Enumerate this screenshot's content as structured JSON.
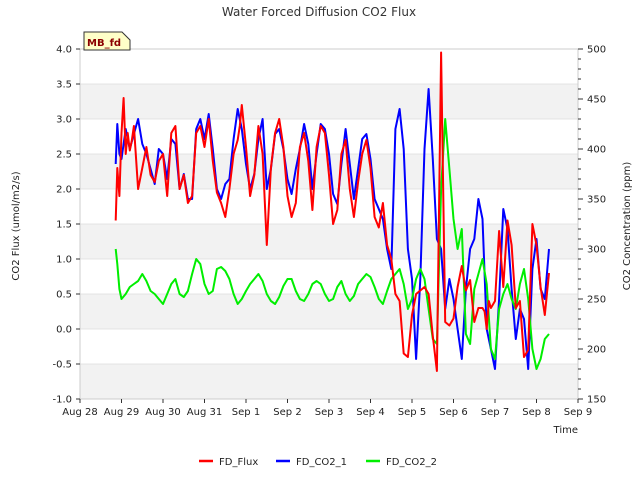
{
  "chart_data": {
    "type": "line",
    "title": "Water Forced Diffusion CO2 Flux",
    "site_label": "MB_fd",
    "xlabel": "Time",
    "ylabel": "CO2 Flux (umol/m2/s)",
    "y2label": "CO2 Concentration (ppm)",
    "x_ticks": [
      "Aug 28",
      "Aug 29",
      "Aug 30",
      "Aug 31",
      "Sep 1",
      "Sep 2",
      "Sep 3",
      "Sep 4",
      "Sep 5",
      "Sep 6",
      "Sep 7",
      "Sep 8",
      "Sep 9"
    ],
    "xlim": [
      0,
      12
    ],
    "ylim": [
      -1.0,
      4.0
    ],
    "y_ticks": [
      "-1.0",
      "-0.5",
      "0.0",
      "0.5",
      "1.0",
      "1.5",
      "2.0",
      "2.5",
      "3.0",
      "3.5",
      "4.0"
    ],
    "y2lim": [
      150,
      500
    ],
    "y2_ticks": [
      "150",
      "200",
      "250",
      "300",
      "350",
      "400",
      "450",
      "500"
    ],
    "series": [
      {
        "name": "FD_Flux",
        "axis": "left",
        "color": "#ff0000",
        "x": [
          0.86,
          0.9,
          0.95,
          1.0,
          1.05,
          1.1,
          1.15,
          1.2,
          1.25,
          1.3,
          1.4,
          1.5,
          1.6,
          1.7,
          1.8,
          1.9,
          2.0,
          2.1,
          2.2,
          2.3,
          2.4,
          2.5,
          2.6,
          2.7,
          2.8,
          2.9,
          3.0,
          3.1,
          3.2,
          3.3,
          3.4,
          3.5,
          3.6,
          3.7,
          3.8,
          3.85,
          3.9,
          4.0,
          4.1,
          4.2,
          4.3,
          4.4,
          4.5,
          4.6,
          4.7,
          4.8,
          4.9,
          5.0,
          5.1,
          5.2,
          5.3,
          5.4,
          5.5,
          5.6,
          5.7,
          5.8,
          5.9,
          6.0,
          6.1,
          6.2,
          6.3,
          6.4,
          6.5,
          6.6,
          6.7,
          6.8,
          6.9,
          7.0,
          7.1,
          7.2,
          7.3,
          7.4,
          7.5,
          7.6,
          7.7,
          7.8,
          7.9,
          8.0,
          8.1,
          8.2,
          8.3,
          8.4,
          8.5,
          8.6,
          8.7,
          8.8,
          8.9,
          9.0,
          9.1,
          9.2,
          9.3,
          9.4,
          9.5,
          9.6,
          9.7,
          9.75,
          9.8,
          9.85,
          9.9,
          10.0,
          10.1,
          10.2,
          10.3,
          10.4,
          10.5,
          10.6,
          10.7,
          10.8,
          10.9,
          11.0,
          11.1,
          11.2,
          11.3
        ],
        "values": [
          1.55,
          2.3,
          1.9,
          2.8,
          3.3,
          2.5,
          2.8,
          2.55,
          2.7,
          2.9,
          2.0,
          2.3,
          2.6,
          2.2,
          2.1,
          2.4,
          2.5,
          1.9,
          2.8,
          2.9,
          2.0,
          2.2,
          1.8,
          1.9,
          2.8,
          2.9,
          2.6,
          3.0,
          2.4,
          1.95,
          1.8,
          1.6,
          2.0,
          2.5,
          2.7,
          2.9,
          3.2,
          2.6,
          1.9,
          2.2,
          2.9,
          2.5,
          1.2,
          2.3,
          2.8,
          3.0,
          2.6,
          1.9,
          1.6,
          1.8,
          2.6,
          2.8,
          2.4,
          1.7,
          2.6,
          2.9,
          2.8,
          2.2,
          1.5,
          1.7,
          2.5,
          2.7,
          2.0,
          1.6,
          2.1,
          2.5,
          2.7,
          2.3,
          1.6,
          1.45,
          1.8,
          1.2,
          1.0,
          0.5,
          0.4,
          -0.35,
          -0.4,
          0.2,
          0.5,
          0.55,
          0.6,
          0.5,
          -0.1,
          -0.6,
          3.95,
          0.1,
          0.05,
          0.15,
          0.6,
          0.9,
          0.55,
          0.7,
          0.1,
          0.3,
          0.3,
          0.25,
          0.0,
          0.4,
          0.3,
          0.4,
          1.4,
          0.6,
          1.55,
          1.2,
          0.3,
          0.4,
          -0.4,
          -0.3,
          1.5,
          1.2,
          0.6,
          0.2,
          0.8
        ]
      },
      {
        "name": "FD_CO2_1",
        "axis": "right",
        "color": "#0000ff",
        "x": [
          0.86,
          0.9,
          0.95,
          1.0,
          1.1,
          1.2,
          1.3,
          1.4,
          1.5,
          1.6,
          1.7,
          1.8,
          1.9,
          2.0,
          2.1,
          2.2,
          2.3,
          2.4,
          2.5,
          2.6,
          2.7,
          2.8,
          2.9,
          3.0,
          3.1,
          3.2,
          3.3,
          3.4,
          3.5,
          3.6,
          3.7,
          3.8,
          3.9,
          4.0,
          4.1,
          4.2,
          4.3,
          4.4,
          4.5,
          4.6,
          4.7,
          4.8,
          4.9,
          5.0,
          5.1,
          5.2,
          5.3,
          5.4,
          5.5,
          5.6,
          5.7,
          5.8,
          5.9,
          6.0,
          6.1,
          6.2,
          6.3,
          6.4,
          6.5,
          6.6,
          6.7,
          6.8,
          6.9,
          7.0,
          7.1,
          7.2,
          7.3,
          7.4,
          7.5,
          7.6,
          7.7,
          7.8,
          7.9,
          8.0,
          8.1,
          8.2,
          8.3,
          8.4,
          8.5,
          8.6,
          8.7,
          8.8,
          8.9,
          9.0,
          9.1,
          9.2,
          9.3,
          9.4,
          9.5,
          9.6,
          9.7,
          9.8,
          9.9,
          10.0,
          10.1,
          10.2,
          10.3,
          10.4,
          10.5,
          10.6,
          10.7,
          10.8,
          10.9,
          11.0,
          11.1,
          11.2,
          11.3
        ],
        "values": [
          385,
          425,
          395,
          390,
          420,
          400,
          415,
          430,
          405,
          395,
          380,
          365,
          400,
          395,
          370,
          410,
          405,
          360,
          375,
          350,
          350,
          420,
          430,
          410,
          435,
          400,
          360,
          350,
          365,
          370,
          410,
          440,
          420,
          385,
          360,
          375,
          410,
          430,
          360,
          380,
          415,
          420,
          400,
          370,
          355,
          380,
          400,
          425,
          405,
          360,
          395,
          425,
          420,
          395,
          355,
          345,
          385,
          420,
          385,
          350,
          380,
          410,
          415,
          390,
          350,
          340,
          330,
          300,
          280,
          420,
          440,
          400,
          300,
          270,
          190,
          270,
          400,
          460,
          390,
          310,
          300,
          240,
          270,
          250,
          220,
          190,
          260,
          300,
          310,
          350,
          330,
          220,
          200,
          180,
          250,
          340,
          320,
          260,
          210,
          240,
          230,
          180,
          280,
          310,
          260,
          250,
          300
        ]
      },
      {
        "name": "FD_CO2_2",
        "axis": "right",
        "color": "#00ee00",
        "x": [
          0.86,
          0.9,
          0.95,
          1.0,
          1.1,
          1.2,
          1.3,
          1.4,
          1.5,
          1.6,
          1.7,
          1.8,
          1.9,
          2.0,
          2.1,
          2.2,
          2.3,
          2.4,
          2.5,
          2.6,
          2.7,
          2.8,
          2.9,
          3.0,
          3.1,
          3.2,
          3.3,
          3.4,
          3.5,
          3.6,
          3.7,
          3.8,
          3.9,
          4.0,
          4.1,
          4.2,
          4.3,
          4.4,
          4.5,
          4.6,
          4.7,
          4.8,
          4.9,
          5.0,
          5.1,
          5.2,
          5.3,
          5.4,
          5.5,
          5.6,
          5.7,
          5.8,
          5.9,
          6.0,
          6.1,
          6.2,
          6.3,
          6.4,
          6.5,
          6.6,
          6.7,
          6.8,
          6.9,
          7.0,
          7.1,
          7.2,
          7.3,
          7.4,
          7.5,
          7.6,
          7.7,
          7.8,
          7.9,
          8.0,
          8.1,
          8.2,
          8.3,
          8.4,
          8.5,
          8.6,
          8.7,
          8.8,
          8.9,
          9.0,
          9.1,
          9.2,
          9.3,
          9.4,
          9.5,
          9.6,
          9.7,
          9.8,
          9.9,
          10.0,
          10.1,
          10.2,
          10.3,
          10.4,
          10.5,
          10.6,
          10.7,
          10.8,
          10.9,
          11.0,
          11.1,
          11.2,
          11.3
        ],
        "values": [
          300,
          285,
          260,
          250,
          255,
          262,
          265,
          268,
          275,
          268,
          258,
          255,
          250,
          245,
          255,
          265,
          270,
          255,
          252,
          258,
          275,
          290,
          285,
          265,
          255,
          258,
          280,
          282,
          278,
          270,
          255,
          245,
          250,
          258,
          265,
          270,
          275,
          268,
          255,
          248,
          245,
          252,
          263,
          270,
          270,
          258,
          250,
          248,
          255,
          265,
          268,
          265,
          255,
          248,
          250,
          262,
          268,
          255,
          248,
          253,
          265,
          270,
          275,
          272,
          262,
          250,
          245,
          258,
          270,
          275,
          280,
          265,
          240,
          250,
          270,
          280,
          270,
          240,
          210,
          205,
          360,
          430,
          380,
          330,
          300,
          320,
          215,
          205,
          260,
          275,
          290,
          265,
          200,
          190,
          240,
          255,
          265,
          250,
          240,
          265,
          280,
          250,
          200,
          180,
          190,
          210,
          215
        ]
      }
    ]
  }
}
